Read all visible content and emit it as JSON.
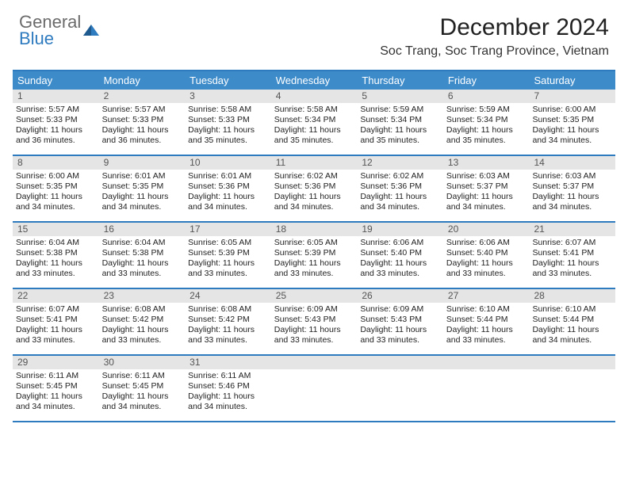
{
  "logo": {
    "line1": "General",
    "line2": "Blue"
  },
  "colors": {
    "accent": "#2f7bbf",
    "headerBar": "#3d8bc9",
    "dayNumBg": "#e5e5e5"
  },
  "title": "December 2024",
  "location": "Soc Trang, Soc Trang Province, Vietnam",
  "dayNames": [
    "Sunday",
    "Monday",
    "Tuesday",
    "Wednesday",
    "Thursday",
    "Friday",
    "Saturday"
  ],
  "labels": {
    "sunrise": "Sunrise:",
    "sunset": "Sunset:",
    "daylight": "Daylight:"
  },
  "weeks": [
    [
      {
        "n": "1",
        "sr": "5:57 AM",
        "ss": "5:33 PM",
        "dl": "11 hours and 36 minutes."
      },
      {
        "n": "2",
        "sr": "5:57 AM",
        "ss": "5:33 PM",
        "dl": "11 hours and 36 minutes."
      },
      {
        "n": "3",
        "sr": "5:58 AM",
        "ss": "5:33 PM",
        "dl": "11 hours and 35 minutes."
      },
      {
        "n": "4",
        "sr": "5:58 AM",
        "ss": "5:34 PM",
        "dl": "11 hours and 35 minutes."
      },
      {
        "n": "5",
        "sr": "5:59 AM",
        "ss": "5:34 PM",
        "dl": "11 hours and 35 minutes."
      },
      {
        "n": "6",
        "sr": "5:59 AM",
        "ss": "5:34 PM",
        "dl": "11 hours and 35 minutes."
      },
      {
        "n": "7",
        "sr": "6:00 AM",
        "ss": "5:35 PM",
        "dl": "11 hours and 34 minutes."
      }
    ],
    [
      {
        "n": "8",
        "sr": "6:00 AM",
        "ss": "5:35 PM",
        "dl": "11 hours and 34 minutes."
      },
      {
        "n": "9",
        "sr": "6:01 AM",
        "ss": "5:35 PM",
        "dl": "11 hours and 34 minutes."
      },
      {
        "n": "10",
        "sr": "6:01 AM",
        "ss": "5:36 PM",
        "dl": "11 hours and 34 minutes."
      },
      {
        "n": "11",
        "sr": "6:02 AM",
        "ss": "5:36 PM",
        "dl": "11 hours and 34 minutes."
      },
      {
        "n": "12",
        "sr": "6:02 AM",
        "ss": "5:36 PM",
        "dl": "11 hours and 34 minutes."
      },
      {
        "n": "13",
        "sr": "6:03 AM",
        "ss": "5:37 PM",
        "dl": "11 hours and 34 minutes."
      },
      {
        "n": "14",
        "sr": "6:03 AM",
        "ss": "5:37 PM",
        "dl": "11 hours and 34 minutes."
      }
    ],
    [
      {
        "n": "15",
        "sr": "6:04 AM",
        "ss": "5:38 PM",
        "dl": "11 hours and 33 minutes."
      },
      {
        "n": "16",
        "sr": "6:04 AM",
        "ss": "5:38 PM",
        "dl": "11 hours and 33 minutes."
      },
      {
        "n": "17",
        "sr": "6:05 AM",
        "ss": "5:39 PM",
        "dl": "11 hours and 33 minutes."
      },
      {
        "n": "18",
        "sr": "6:05 AM",
        "ss": "5:39 PM",
        "dl": "11 hours and 33 minutes."
      },
      {
        "n": "19",
        "sr": "6:06 AM",
        "ss": "5:40 PM",
        "dl": "11 hours and 33 minutes."
      },
      {
        "n": "20",
        "sr": "6:06 AM",
        "ss": "5:40 PM",
        "dl": "11 hours and 33 minutes."
      },
      {
        "n": "21",
        "sr": "6:07 AM",
        "ss": "5:41 PM",
        "dl": "11 hours and 33 minutes."
      }
    ],
    [
      {
        "n": "22",
        "sr": "6:07 AM",
        "ss": "5:41 PM",
        "dl": "11 hours and 33 minutes."
      },
      {
        "n": "23",
        "sr": "6:08 AM",
        "ss": "5:42 PM",
        "dl": "11 hours and 33 minutes."
      },
      {
        "n": "24",
        "sr": "6:08 AM",
        "ss": "5:42 PM",
        "dl": "11 hours and 33 minutes."
      },
      {
        "n": "25",
        "sr": "6:09 AM",
        "ss": "5:43 PM",
        "dl": "11 hours and 33 minutes."
      },
      {
        "n": "26",
        "sr": "6:09 AM",
        "ss": "5:43 PM",
        "dl": "11 hours and 33 minutes."
      },
      {
        "n": "27",
        "sr": "6:10 AM",
        "ss": "5:44 PM",
        "dl": "11 hours and 33 minutes."
      },
      {
        "n": "28",
        "sr": "6:10 AM",
        "ss": "5:44 PM",
        "dl": "11 hours and 34 minutes."
      }
    ],
    [
      {
        "n": "29",
        "sr": "6:11 AM",
        "ss": "5:45 PM",
        "dl": "11 hours and 34 minutes."
      },
      {
        "n": "30",
        "sr": "6:11 AM",
        "ss": "5:45 PM",
        "dl": "11 hours and 34 minutes."
      },
      {
        "n": "31",
        "sr": "6:11 AM",
        "ss": "5:46 PM",
        "dl": "11 hours and 34 minutes."
      },
      null,
      null,
      null,
      null
    ]
  ]
}
